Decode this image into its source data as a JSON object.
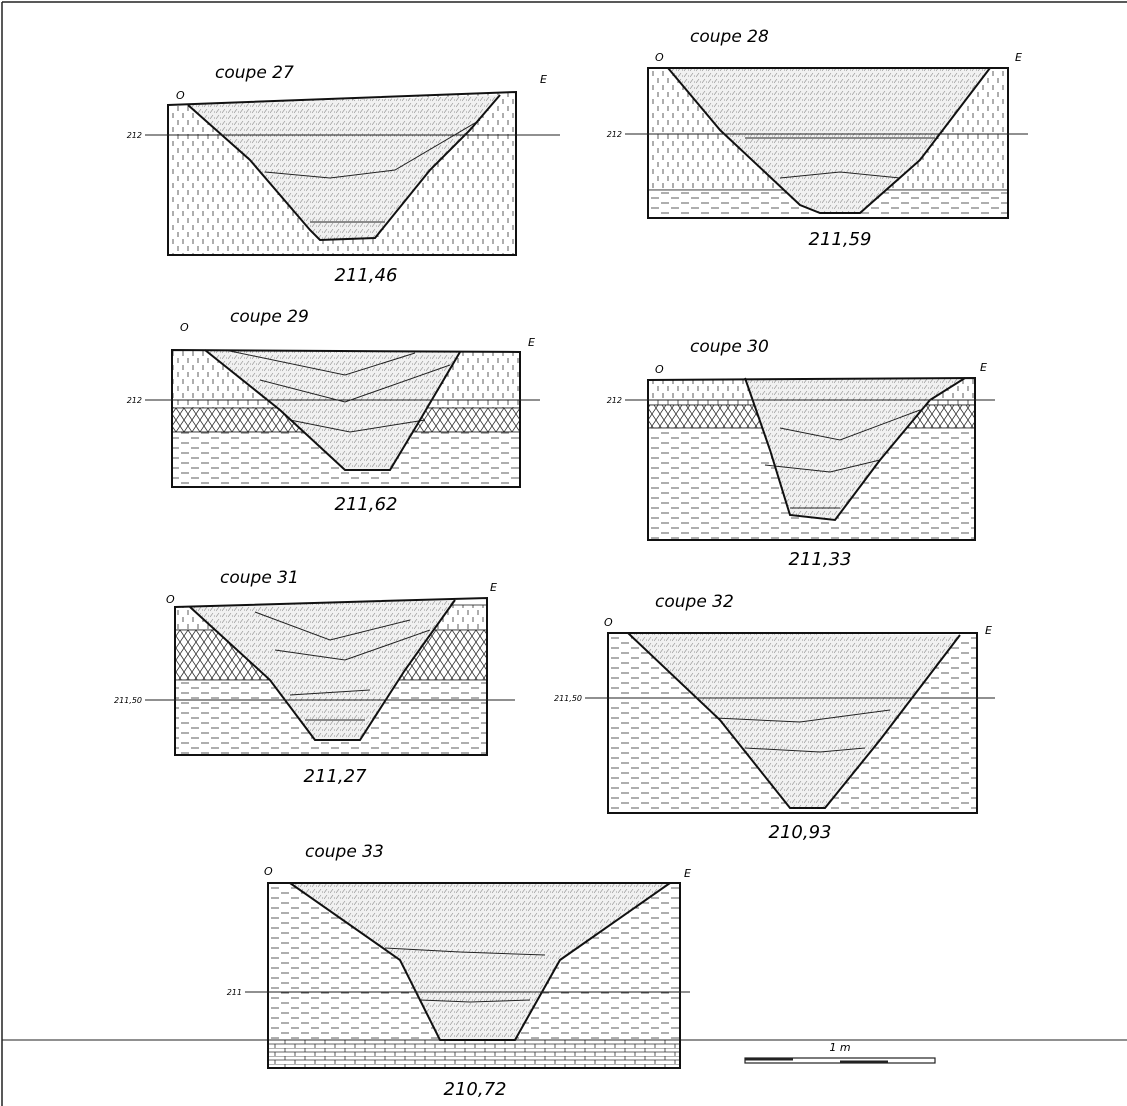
{
  "sections": [
    {
      "title": "coupe 27",
      "west": "O",
      "east": "E",
      "level": "212",
      "base": "211,46"
    },
    {
      "title": "coupe 28",
      "west": "O",
      "east": "E",
      "level": "212",
      "base": "211,59"
    },
    {
      "title": "coupe 29",
      "west": "O",
      "east": "E",
      "level": "212",
      "base": "211,62"
    },
    {
      "title": "coupe 30",
      "west": "O",
      "east": "E",
      "level": "212",
      "base": "211,33"
    },
    {
      "title": "coupe 31",
      "west": "O",
      "east": "E",
      "level": "211,50",
      "base": "211,27"
    },
    {
      "title": "coupe 32",
      "west": "O",
      "east": "E",
      "level": "211,50",
      "base": "210,93"
    },
    {
      "title": "coupe 33",
      "west": "O",
      "east": "E",
      "level": "211",
      "base": "210,72"
    }
  ],
  "scale": {
    "label": "1 m"
  }
}
